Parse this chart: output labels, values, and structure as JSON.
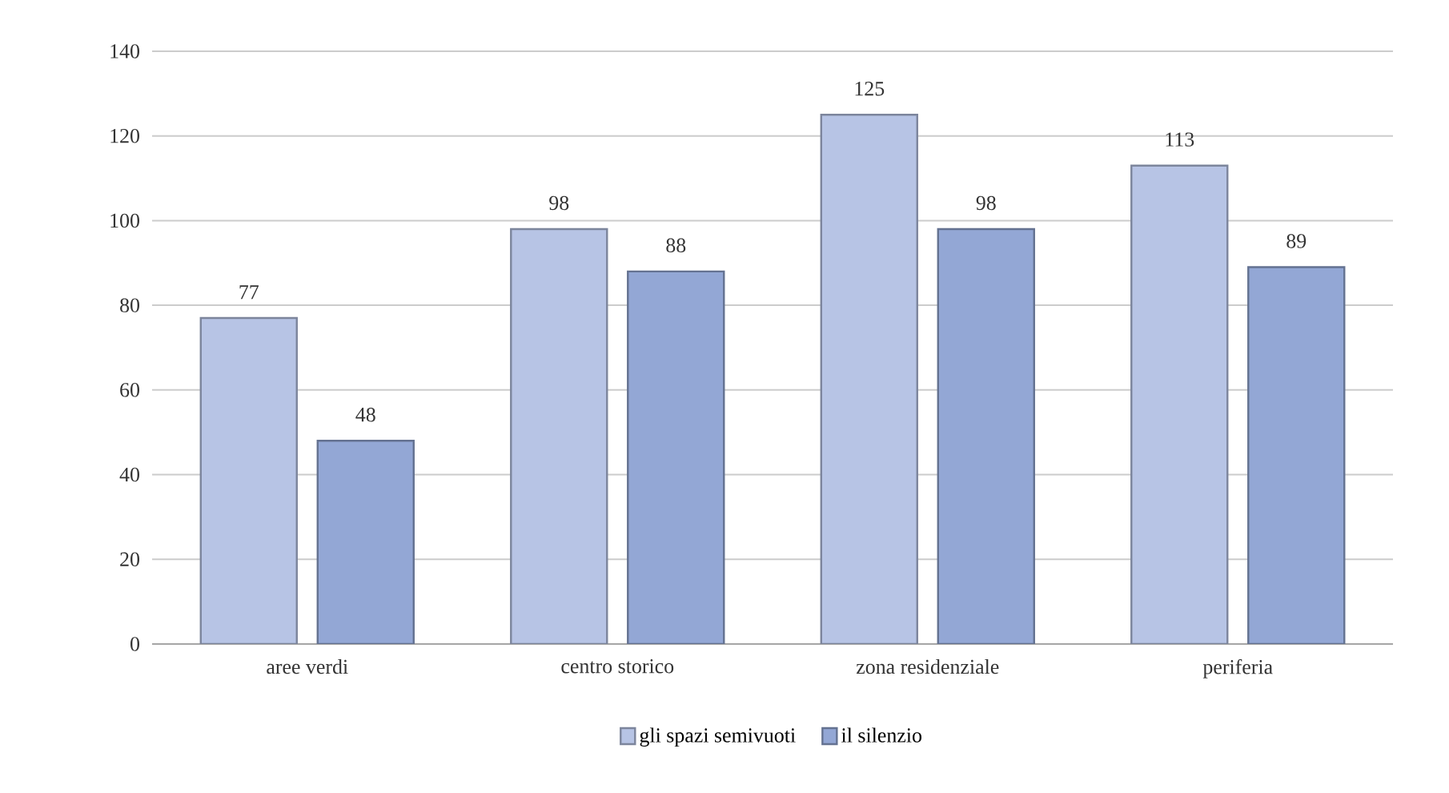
{
  "chart_data": {
    "type": "bar",
    "categories": [
      "aree verdi",
      "centro storico",
      "zona residenziale",
      "periferia"
    ],
    "series": [
      {
        "name": "gli spazi semivuoti",
        "color": "#b7c4e5",
        "values": [
          77,
          98,
          125,
          113
        ]
      },
      {
        "name": "il silenzio",
        "color": "#93a7d5",
        "values": [
          48,
          88,
          98,
          89
        ]
      }
    ],
    "ylim": [
      0,
      140
    ],
    "yticks": [
      0,
      20,
      40,
      60,
      80,
      100,
      120,
      140
    ],
    "grid": "y",
    "legend": "bottom",
    "data_labels": true
  }
}
